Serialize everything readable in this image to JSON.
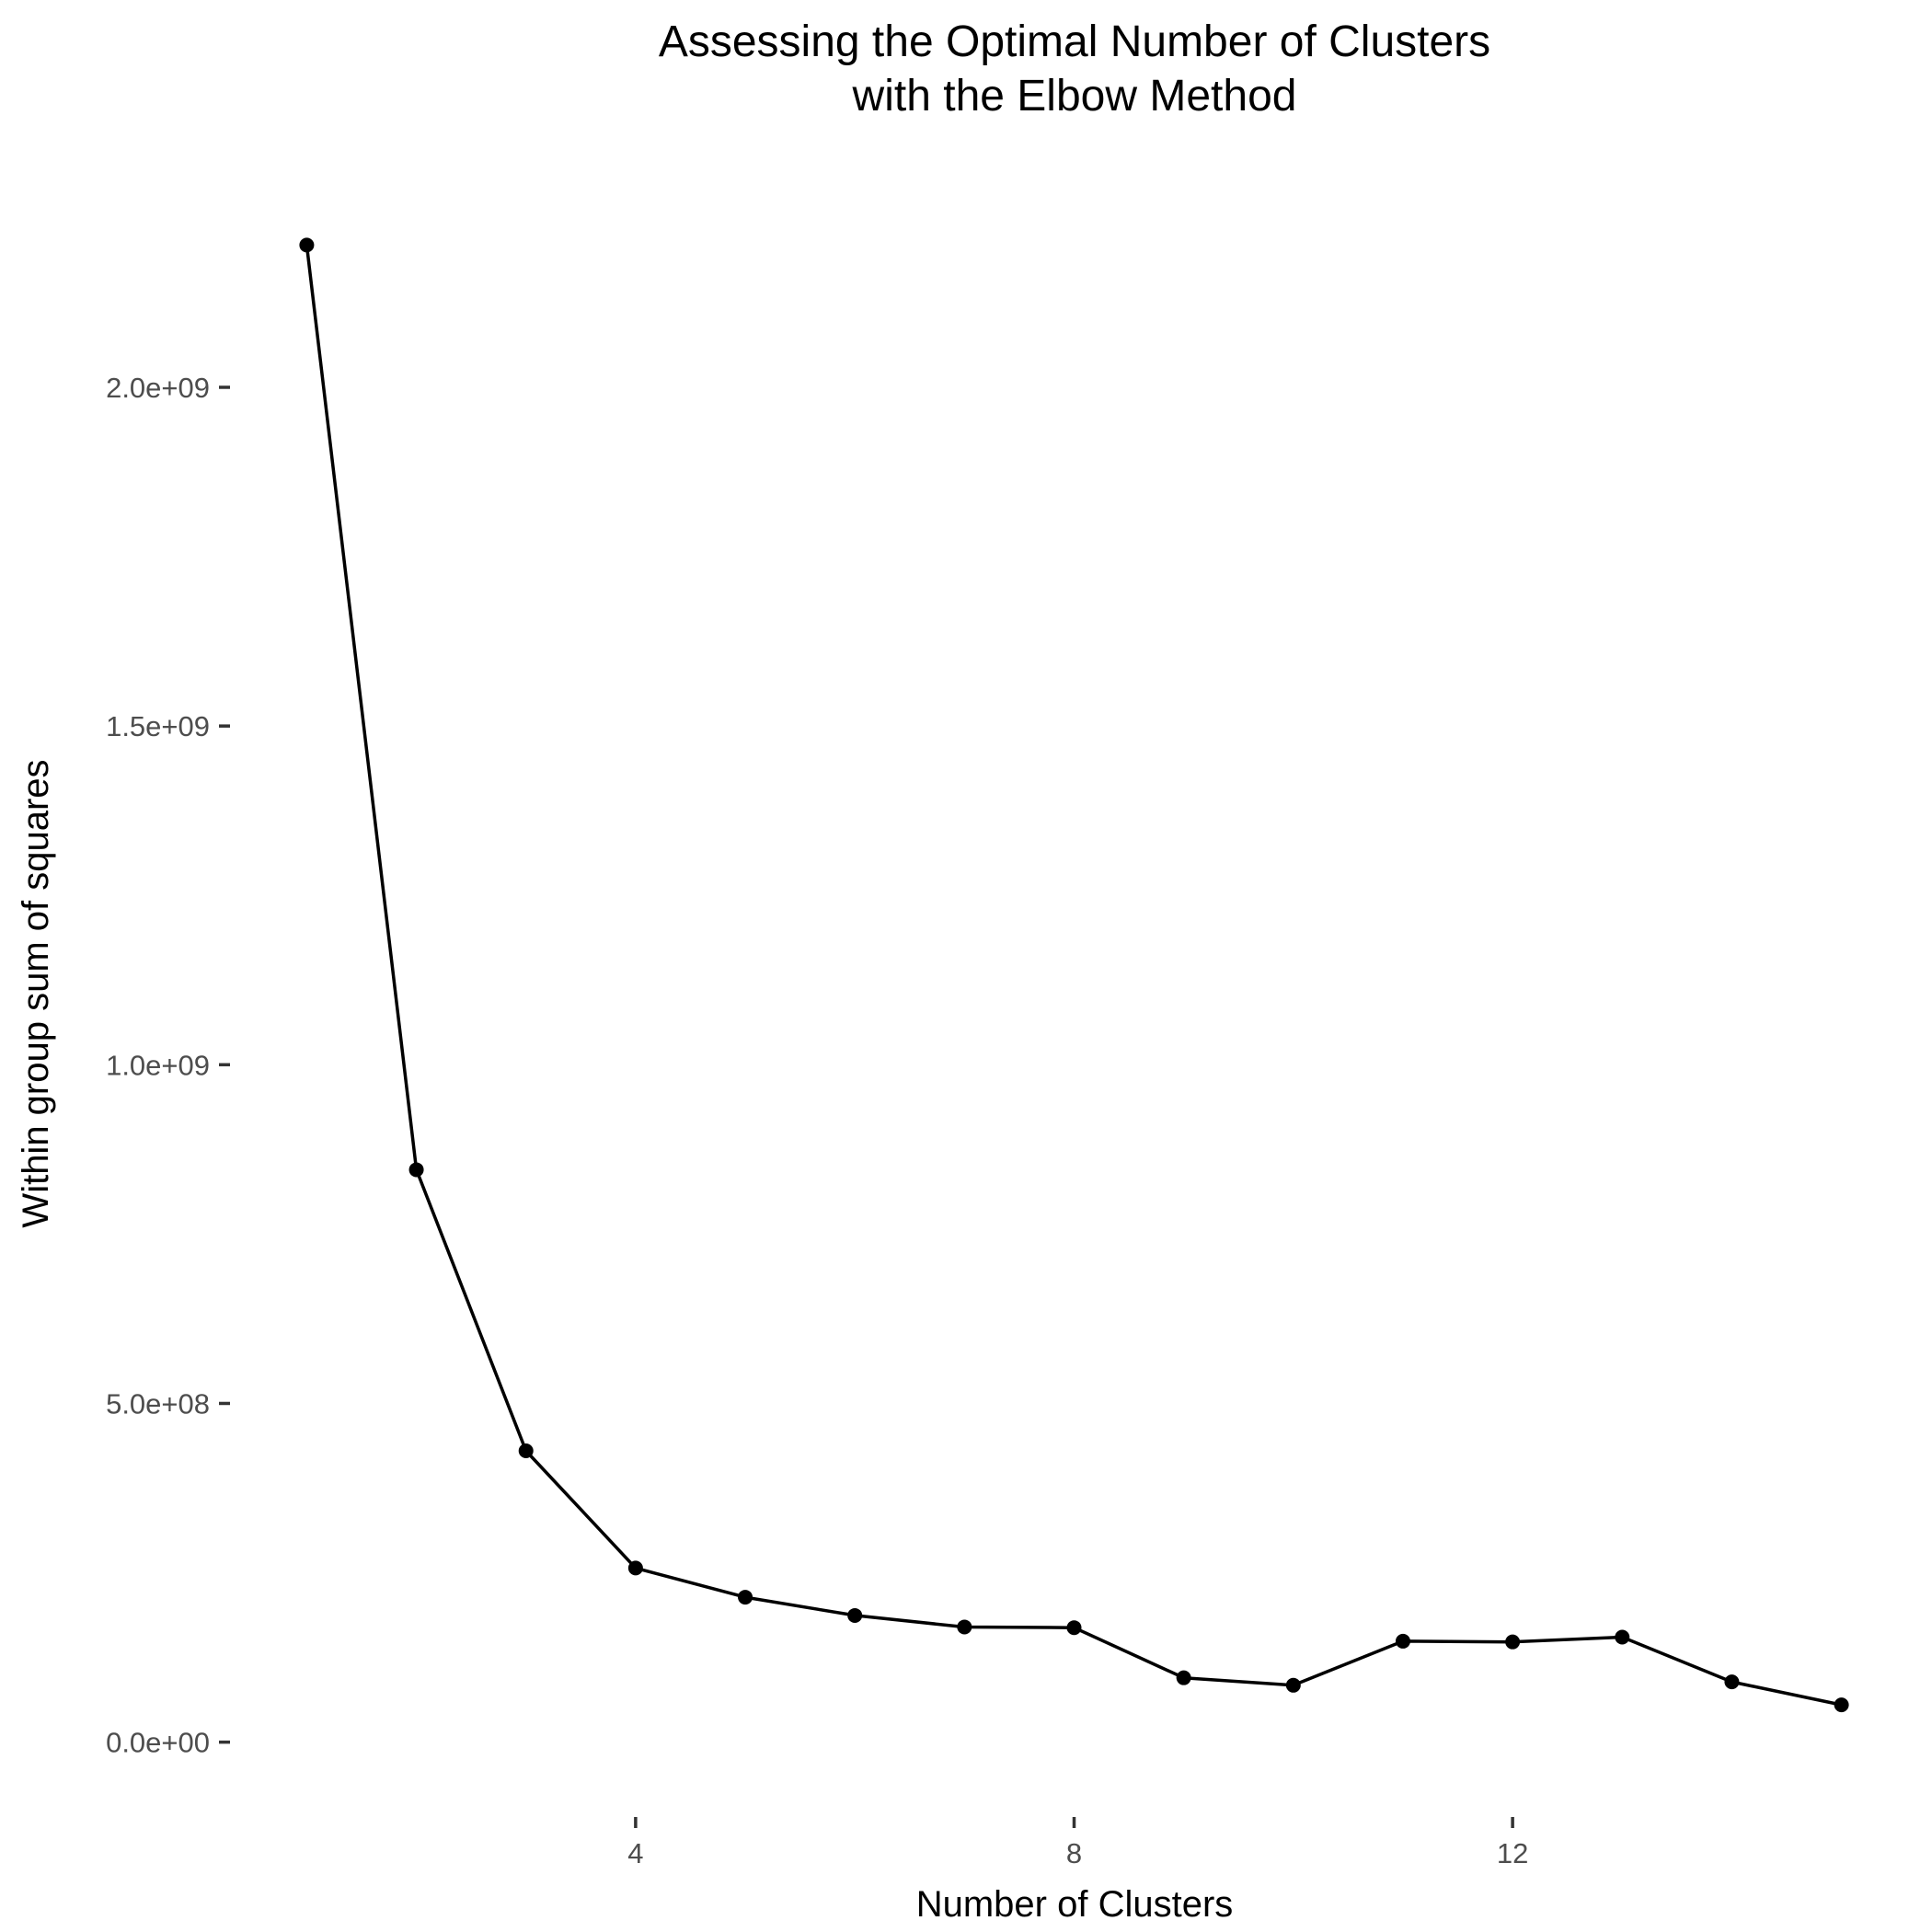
{
  "chart_data": {
    "type": "line",
    "title": "Assessing the Optimal Number of Clusters",
    "subtitle": "with the Elbow Method",
    "xlabel": "Number of Clusters",
    "ylabel": "Within group sum of squares",
    "x": [
      1,
      2,
      3,
      4,
      5,
      6,
      7,
      8,
      9,
      10,
      11,
      12,
      13,
      14,
      15
    ],
    "series": [
      {
        "values": [
          2210000000,
          845000000,
          430000000,
          257000000,
          214000000,
          187000000,
          170000000,
          169000000,
          95000000,
          84000000,
          149000000,
          148000000,
          155000000,
          89000000,
          55000000
        ]
      }
    ],
    "x_ticks": [
      4,
      8,
      12
    ],
    "x_tick_labels": [
      "4",
      "8",
      "12"
    ],
    "y_ticks": [
      0,
      500000000,
      1000000000,
      1500000000,
      2000000000
    ],
    "y_tick_labels": [
      "0.0e+00",
      "5.0e+08",
      "1.0e+09",
      "1.5e+09",
      "2.0e+09"
    ],
    "xlim": [
      0.3,
      15.7
    ],
    "ylim": [
      -110500000,
      2320500000
    ],
    "grid": false,
    "legend": "none",
    "line_color": "#000000",
    "point_color": "#000000",
    "tick_label_color": "#4d4d4d"
  }
}
